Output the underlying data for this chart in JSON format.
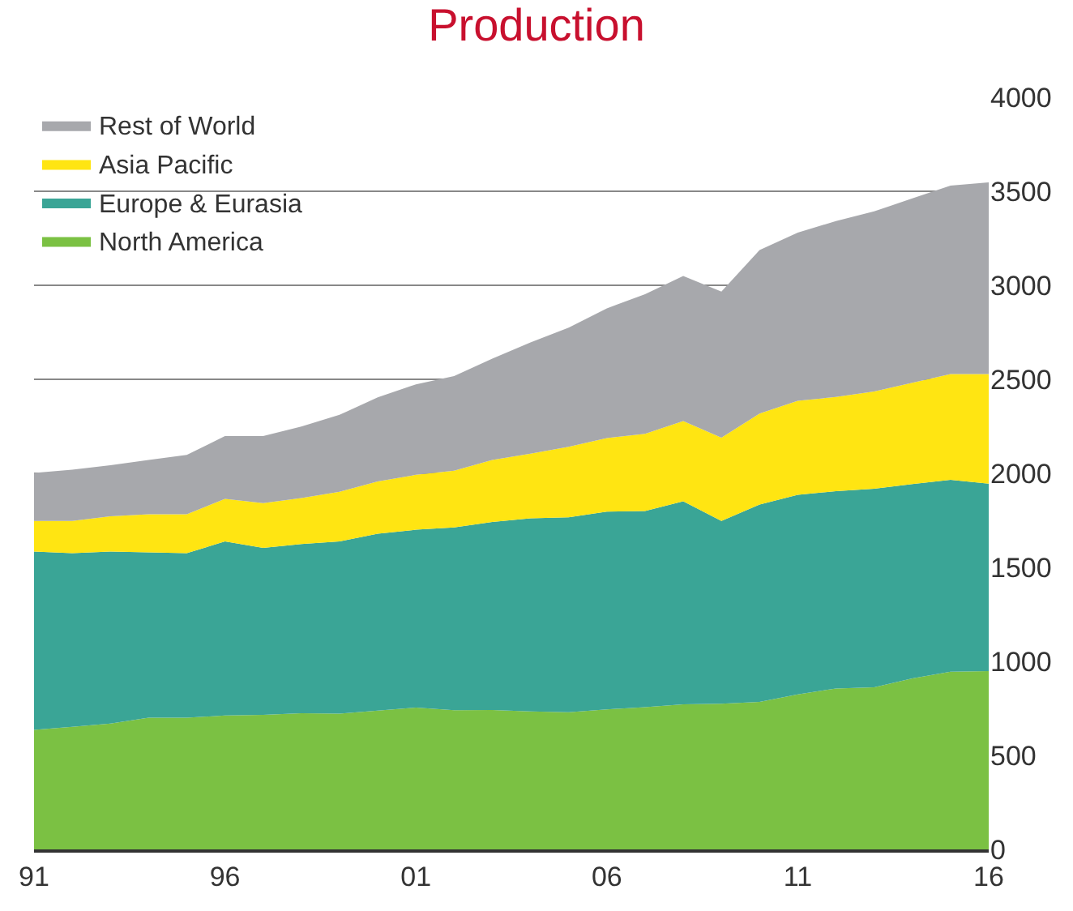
{
  "chart_data": {
    "type": "area",
    "title": "Production",
    "stacked": true,
    "x": [
      1991,
      1992,
      1993,
      1994,
      1995,
      1996,
      1997,
      1998,
      1999,
      2000,
      2001,
      2002,
      2003,
      2004,
      2005,
      2006,
      2007,
      2008,
      2009,
      2010,
      2011,
      2012,
      2013,
      2014,
      2015,
      2016
    ],
    "series": [
      {
        "name": "North America",
        "color": "#7bc143",
        "values": [
          636,
          652,
          669,
          700,
          700,
          712,
          716,
          724,
          722,
          738,
          754,
          740,
          741,
          734,
          730,
          745,
          756,
          771,
          775,
          785,
          824,
          856,
          862,
          909,
          945,
          948
        ]
      },
      {
        "name": "Europe & Eurasia",
        "color": "#3aa596",
        "values": [
          948,
          923,
          915,
          880,
          875,
          926,
          887,
          900,
          916,
          941,
          946,
          972,
          1000,
          1027,
          1036,
          1051,
          1044,
          1080,
          972,
          1049,
          1062,
          1049,
          1056,
          1034,
          1020,
          997
        ]
      },
      {
        "name": "Asia Pacific",
        "color": "#ffe512",
        "values": [
          163,
          172,
          187,
          202,
          207,
          226,
          239,
          245,
          264,
          278,
          292,
          302,
          330,
          344,
          375,
          392,
          410,
          427,
          443,
          484,
          500,
          501,
          517,
          539,
          563,
          583
        ]
      },
      {
        "name": "Rest of World",
        "color": "#a7a8ac",
        "values": [
          255,
          272,
          272,
          289,
          316,
          334,
          356,
          380,
          409,
          447,
          481,
          503,
          539,
          591,
          634,
          689,
          743,
          772,
          777,
          869,
          894,
          936,
          958,
          980,
          1002,
          1019
        ]
      }
    ],
    "xlim": [
      1991,
      2016
    ],
    "xticks": [
      {
        "value": 1991,
        "label": "91"
      },
      {
        "value": 1996,
        "label": "96"
      },
      {
        "value": 2001,
        "label": "01"
      },
      {
        "value": 2006,
        "label": "06"
      },
      {
        "value": 2011,
        "label": "11"
      },
      {
        "value": 2016,
        "label": "16"
      }
    ],
    "ylim": [
      0,
      4000
    ],
    "yticks": [
      0,
      500,
      1000,
      1500,
      2000,
      2500,
      3000,
      3500,
      4000
    ],
    "grid": "y",
    "legend": "top left"
  }
}
